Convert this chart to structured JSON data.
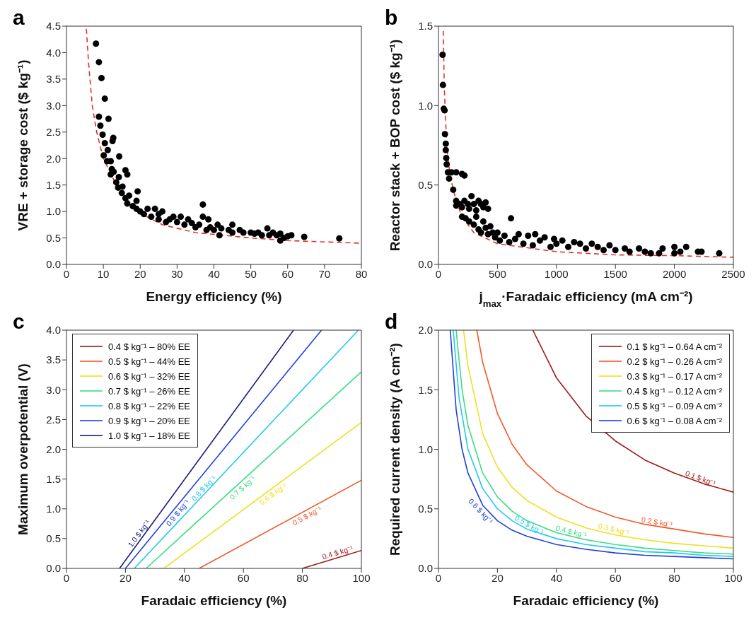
{
  "chart_data": [
    {
      "type": "scatter",
      "title": "a",
      "xlabel": "Energy efficiency (%)",
      "ylabel": "VRE + storage cost ($ kg⁻¹)",
      "xlim": [
        0,
        80
      ],
      "xticks": [
        0,
        10,
        20,
        30,
        40,
        50,
        60,
        70,
        80
      ],
      "ylim": [
        0,
        4.5
      ],
      "yticks": [
        {
          "value": 0,
          "label": "0.0"
        },
        0.5,
        {
          "value": 1,
          "label": "1.0"
        },
        1.5,
        {
          "value": 2,
          "label": "2.0"
        },
        2.5,
        {
          "value": 3,
          "label": "3.0"
        },
        3.5,
        {
          "value": 4,
          "label": "4.0"
        },
        4.5
      ],
      "grid": false,
      "legend": false,
      "series": [
        {
          "type": "scatter",
          "color": "#000000",
          "marker": "circle",
          "x": [
            8,
            8.8,
            9.5,
            10.4,
            8.8,
            9.2,
            9.8,
            11.4,
            10.4,
            10.1,
            11.2,
            12.5,
            12.7,
            14.3,
            11,
            12,
            12.3,
            12.8,
            12,
            14.2,
            13.5,
            15.2,
            14,
            16,
            16.5,
            15,
            16,
            17,
            19.3,
            16.5,
            18,
            19,
            19,
            20,
            21,
            22,
            23,
            24,
            25,
            25,
            26,
            27,
            28,
            29,
            30,
            31,
            32,
            33,
            34,
            35,
            36,
            37,
            37,
            38,
            38.5,
            39,
            40,
            41,
            41.5,
            42,
            44,
            45,
            45,
            47,
            48,
            50,
            51,
            52,
            53,
            54.5,
            55,
            56,
            57,
            58,
            58,
            59,
            60,
            61,
            64.5,
            74
          ],
          "values": [
            4.17,
            3.82,
            3.52,
            3.13,
            2.79,
            2.62,
            2.45,
            2.75,
            2.29,
            2.06,
            2.16,
            2.33,
            2.39,
            2.04,
            1.95,
            1.95,
            1.8,
            1.75,
            1.7,
            1.65,
            1.55,
            1.47,
            1.45,
            1.78,
            1.7,
            1.35,
            1.25,
            1.3,
            1.38,
            1.15,
            1.1,
            1.2,
            1.05,
            1.0,
            0.95,
            1.05,
            0.9,
            1.05,
            0.95,
            0.85,
            1.0,
            0.8,
            0.85,
            0.9,
            0.8,
            0.9,
            0.75,
            0.85,
            0.78,
            0.7,
            0.75,
            1.13,
            0.9,
            0.65,
            0.85,
            0.7,
            0.65,
            0.75,
            0.55,
            0.68,
            0.65,
            0.75,
            0.6,
            0.65,
            0.6,
            0.6,
            0.58,
            0.6,
            0.55,
            0.68,
            0.55,
            0.6,
            0.55,
            0.58,
            0.45,
            0.5,
            0.53,
            0.55,
            0.52,
            0.49
          ]
        },
        {
          "type": "line",
          "color": "#e8302a",
          "line_style": "dashed",
          "marker": "none",
          "x": [
            5.4,
            6,
            7,
            8.2,
            10,
            13.5,
            19,
            26,
            35,
            50,
            60,
            80
          ],
          "values": [
            4.45,
            3.8,
            3.0,
            2.5,
            2.0,
            1.5,
            1.0,
            0.75,
            0.6,
            0.5,
            0.45,
            0.4
          ]
        }
      ]
    },
    {
      "type": "scatter",
      "title": "b",
      "xlabel": "j$_{max}$·Faradaic efficiency (mA cm⁻²)",
      "ylabel": "Reactor stack + BOP cost ($ kg⁻¹)",
      "xlim": [
        0,
        2500
      ],
      "xticks": [
        0,
        500,
        1000,
        1500,
        2000,
        2500
      ],
      "ylim": [
        0,
        1.5
      ],
      "yticks": [
        {
          "value": 0,
          "label": "0.0"
        },
        0.5,
        {
          "value": 1,
          "label": "1.0"
        },
        1.5
      ],
      "grid": false,
      "legend": false,
      "series": [
        {
          "type": "scatter",
          "color": "#000000",
          "marker": "circle",
          "x": [
            35,
            38,
            45,
            52,
            55,
            62,
            62,
            66,
            70,
            80,
            90,
            110,
            150,
            200,
            220,
            125,
            150,
            150,
            180,
            200,
            220,
            250,
            260,
            280,
            300,
            320,
            340,
            360,
            380,
            400,
            420,
            200,
            230,
            260,
            300,
            320,
            340,
            360,
            380,
            400,
            420,
            440,
            460,
            480,
            500,
            520,
            560,
            600,
            615,
            650,
            680,
            720,
            760,
            800,
            820,
            860,
            900,
            950,
            980,
            1000,
            1050,
            1100,
            1150,
            1200,
            1250,
            1300,
            1350,
            1400,
            1450,
            1500,
            1580,
            1620,
            1700,
            1750,
            1800,
            1870,
            1900,
            2000,
            2000,
            2050,
            2100,
            2200,
            2230,
            2380
          ],
          "values": [
            1.32,
            1.13,
            0.98,
            0.97,
            0.82,
            0.76,
            0.72,
            0.67,
            0.63,
            0.58,
            0.54,
            0.58,
            0.58,
            0.57,
            0.56,
            0.47,
            0.4,
            0.37,
            0.38,
            0.36,
            0.4,
            0.38,
            0.35,
            0.43,
            0.38,
            0.34,
            0.4,
            0.38,
            0.36,
            0.39,
            0.35,
            0.3,
            0.29,
            0.27,
            0.25,
            0.3,
            0.22,
            0.2,
            0.27,
            0.23,
            0.19,
            0.24,
            0.2,
            0.17,
            0.2,
            0.15,
            0.18,
            0.14,
            0.29,
            0.16,
            0.19,
            0.13,
            0.18,
            0.12,
            0.19,
            0.15,
            0.17,
            0.11,
            0.16,
            0.13,
            0.15,
            0.11,
            0.14,
            0.13,
            0.1,
            0.13,
            0.11,
            0.09,
            0.12,
            0.09,
            0.1,
            0.08,
            0.1,
            0.08,
            0.07,
            0.07,
            0.1,
            0.11,
            0.07,
            0.08,
            0.11,
            0.08,
            0.08,
            0.07
          ]
        },
        {
          "type": "line",
          "color": "#e8302a",
          "line_style": "dashed",
          "marker": "none",
          "x": [
            40,
            50,
            70,
            100,
            150,
            200,
            300,
            500,
            1000,
            1500,
            2000,
            2500
          ],
          "values": [
            1.47,
            1.1,
            0.75,
            0.55,
            0.4,
            0.3,
            0.2,
            0.13,
            0.08,
            0.06,
            0.055,
            0.045
          ]
        }
      ]
    },
    {
      "type": "line",
      "title": "c",
      "xlabel": "Faradaic efficiency (%)",
      "ylabel": "Maximum overpotential (V)",
      "xlim": [
        0,
        100
      ],
      "xticks": [
        0,
        20,
        40,
        60,
        80,
        100
      ],
      "ylim": [
        0,
        4
      ],
      "yticks": [
        {
          "value": 0,
          "label": "0.0"
        },
        0.5,
        {
          "value": 1,
          "label": "1.0"
        },
        1.5,
        {
          "value": 2,
          "label": "2.0"
        },
        2.5,
        {
          "value": 3,
          "label": "3.0"
        },
        3.5,
        {
          "value": 4,
          "label": "4.0"
        }
      ],
      "grid": false,
      "legend": "top left",
      "marker": "none",
      "line_style": "solid",
      "series": [
        {
          "name": "0.4 $ kg⁻¹ – 80% EE",
          "color": "#a01818",
          "x": [
            80,
            100
          ],
          "values": [
            0,
            0.3
          ]
        },
        {
          "name": "0.5 $ kg⁻¹ – 44% EE",
          "color": "#f05a28",
          "x": [
            45,
            100
          ],
          "values": [
            0,
            1.48
          ]
        },
        {
          "name": "0.6 $ kg⁻¹ – 32% EE",
          "color": "#f0e020",
          "x": [
            33,
            100
          ],
          "values": [
            0,
            2.45
          ]
        },
        {
          "name": "0.7 $ kg⁻¹ – 26% EE",
          "color": "#3ddc84",
          "x": [
            27,
            100
          ],
          "values": [
            0,
            3.3
          ]
        },
        {
          "name": "0.8 $ kg⁻¹ – 22% EE",
          "color": "#20c8f0",
          "x": [
            23,
            99
          ],
          "values": [
            0,
            4
          ]
        },
        {
          "name": "0.9 $ kg⁻¹ – 20% EE",
          "color": "#2040e0",
          "x": [
            20,
            86.5
          ],
          "values": [
            0,
            4
          ]
        },
        {
          "name": "1.0 $ kg⁻¹ – 18% EE",
          "color": "#1a1a7a",
          "x": [
            18,
            77
          ],
          "values": [
            0,
            4
          ]
        }
      ],
      "annotations": [
        {
          "text": "0.4 $ kg⁻¹",
          "x": 92.4,
          "y": 0.19
        },
        {
          "text": "0.5 $ kg⁻¹",
          "x": 80.7,
          "y": 0.96
        },
        {
          "text": "0.6 $ kg⁻¹",
          "x": 69,
          "y": 1.32
        },
        {
          "text": "0.7 $ kg⁻¹",
          "x": 58.5,
          "y": 1.42
        },
        {
          "text": "0.8 $ kg⁻¹",
          "x": 47.7,
          "y": 1.29
        },
        {
          "text": "0.9 $ kg⁻¹",
          "x": 36.4,
          "y": 0.99
        },
        {
          "text": "1.0 $ kg⁻¹",
          "x": 25.9,
          "y": 0.54
        }
      ]
    },
    {
      "type": "line",
      "title": "d",
      "xlabel": "Faradaic efficiency (%)",
      "ylabel": "Required current density (A cm⁻²)",
      "xlim": [
        0,
        100
      ],
      "xticks": [
        0,
        20,
        40,
        60,
        80,
        100
      ],
      "ylim": [
        0,
        2
      ],
      "yticks": [
        {
          "value": 0,
          "label": "0.0"
        },
        0.5,
        {
          "value": 1,
          "label": "1.0"
        },
        1.5,
        {
          "value": 2,
          "label": "2.0"
        }
      ],
      "grid": false,
      "legend": "top right",
      "marker": "none",
      "line_style": "solid",
      "series": [
        {
          "name": "0.1 $ kg⁻¹ – 0.64 A cm⁻²",
          "color": "#a01818",
          "x": [
            32,
            40,
            50,
            60,
            70,
            80,
            90,
            100
          ],
          "values": [
            2.0,
            1.6,
            1.28,
            1.07,
            0.91,
            0.8,
            0.71,
            0.64
          ]
        },
        {
          "name": "0.2 $ kg⁻¹ – 0.26 A cm⁻²",
          "color": "#f05a28",
          "x": [
            13,
            15,
            20,
            25,
            30,
            40,
            50,
            60,
            70,
            80,
            90,
            100
          ],
          "values": [
            2.0,
            1.73,
            1.3,
            1.04,
            0.87,
            0.65,
            0.52,
            0.43,
            0.37,
            0.33,
            0.29,
            0.26
          ]
        },
        {
          "name": "0.3 $ kg⁻¹ – 0.17 A cm⁻²",
          "color": "#f0e020",
          "x": [
            8.5,
            10,
            15,
            20,
            25,
            30,
            40,
            50,
            60,
            70,
            80,
            90,
            100
          ],
          "values": [
            2.0,
            1.7,
            1.13,
            0.85,
            0.68,
            0.57,
            0.43,
            0.34,
            0.28,
            0.24,
            0.21,
            0.19,
            0.17
          ]
        },
        {
          "name": "0.4 $ kg⁻¹ – 0.12 A cm⁻²",
          "color": "#3ddc84",
          "x": [
            6,
            8,
            10,
            15,
            20,
            25,
            30,
            40,
            50,
            60,
            70,
            80,
            90,
            100
          ],
          "values": [
            2.0,
            1.5,
            1.2,
            0.8,
            0.6,
            0.48,
            0.4,
            0.3,
            0.24,
            0.2,
            0.17,
            0.15,
            0.13,
            0.12
          ]
        },
        {
          "name": "0.5 $ kg⁻¹ – 0.09 A cm⁻²",
          "color": "#20c8f0",
          "x": [
            5,
            7,
            10,
            15,
            20,
            25,
            30,
            40,
            50,
            60,
            70,
            80,
            90,
            100
          ],
          "values": [
            2.0,
            1.43,
            1.0,
            0.67,
            0.5,
            0.4,
            0.33,
            0.25,
            0.2,
            0.17,
            0.14,
            0.13,
            0.11,
            0.1
          ]
        },
        {
          "name": "0.6 $ kg⁻¹ – 0.08 A cm⁻²",
          "color": "#2040e0",
          "x": [
            4,
            6,
            8,
            10,
            15,
            20,
            25,
            30,
            40,
            50,
            60,
            70,
            80,
            90,
            100
          ],
          "values": [
            2.0,
            1.33,
            1.0,
            0.8,
            0.53,
            0.4,
            0.32,
            0.27,
            0.2,
            0.16,
            0.13,
            0.11,
            0.1,
            0.09,
            0.08
          ]
        }
      ],
      "annotations": [
        {
          "text": "0.1 $ kg⁻¹",
          "x": 88.3,
          "y": 0.72
        },
        {
          "text": "0.2 $ kg⁻¹",
          "x": 73.9,
          "y": 0.35
        },
        {
          "text": "0.3 $ kg⁻¹",
          "x": 59.1,
          "y": 0.29
        },
        {
          "text": "0.4 $ kg⁻¹",
          "x": 44.7,
          "y": 0.27
        },
        {
          "text": "0.5 $ kg⁻¹",
          "x": 30,
          "y": 0.33
        },
        {
          "text": "0.6 $ kg⁻¹",
          "x": 15.6,
          "y": 0.51
        }
      ]
    }
  ]
}
